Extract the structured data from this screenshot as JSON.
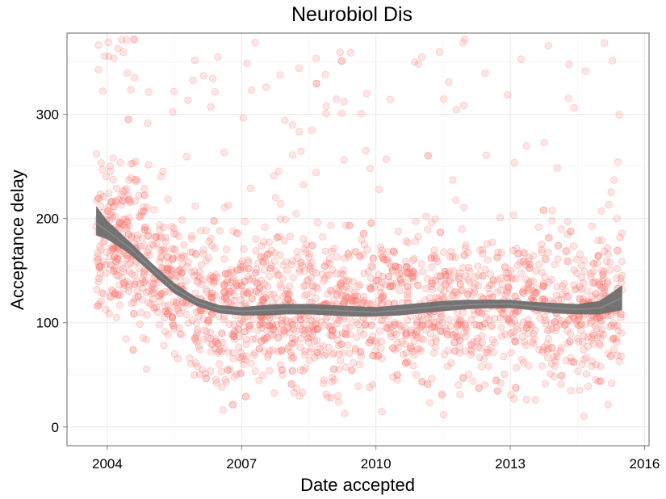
{
  "chart_data": {
    "type": "scatter",
    "title": "Neurobiol Dis",
    "xlabel": "Date accepted",
    "ylabel": "Acceptance delay",
    "xlim": [
      2003.1,
      2016.1
    ],
    "ylim": [
      -18,
      378
    ],
    "x_ticks": [
      2004,
      2007,
      2010,
      2013,
      2016
    ],
    "y_ticks": [
      0,
      100,
      200,
      300
    ],
    "grid": true,
    "point_color": "#f8766d",
    "smooth_color": "#6e6e6e",
    "x_range": [
      2003.75,
      2015.5
    ],
    "point_count": 2300,
    "smooth": {
      "x": [
        2003.75,
        2004.0,
        2004.5,
        2005.0,
        2005.5,
        2006.0,
        2006.5,
        2007.0,
        2007.5,
        2008.0,
        2008.5,
        2009.0,
        2009.5,
        2010.0,
        2010.5,
        2011.0,
        2011.5,
        2012.0,
        2012.5,
        2013.0,
        2013.5,
        2014.0,
        2014.5,
        2015.0,
        2015.5
      ],
      "y": [
        196,
        188,
        172,
        152,
        133,
        120,
        113,
        111,
        112,
        113,
        113,
        112,
        111,
        110,
        112,
        114,
        116,
        117,
        118,
        118,
        116,
        114,
        113,
        114,
        124
      ],
      "lower": [
        184,
        180,
        166,
        147,
        128,
        116,
        109,
        107,
        107,
        108,
        108,
        107,
        106,
        106,
        107,
        109,
        111,
        113,
        114,
        114,
        112,
        109,
        108,
        108,
        112
      ],
      "upper": [
        212,
        198,
        178,
        157,
        138,
        124,
        117,
        115,
        117,
        118,
        118,
        117,
        116,
        115,
        117,
        119,
        121,
        122,
        122,
        122,
        120,
        119,
        118,
        121,
        136
      ]
    }
  }
}
